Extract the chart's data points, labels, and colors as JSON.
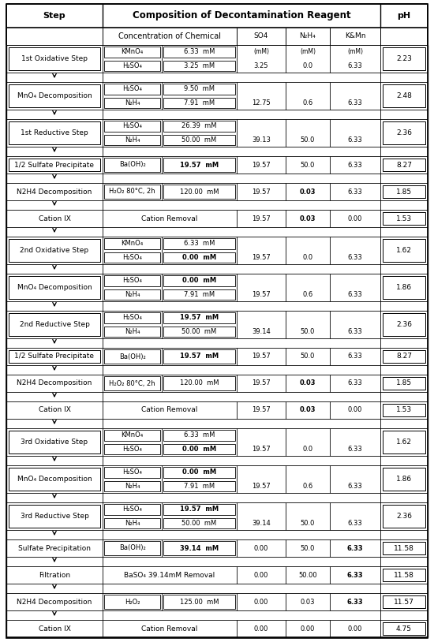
{
  "title_step": "Step",
  "title_composition": "Composition of Decontamination Reagent",
  "title_ph": "pH",
  "subheader_conc": "Concentration of Chemical",
  "subheader_so4": "SO4",
  "subheader_n2h4": "N₂H₄",
  "subheader_kmn": "K&Mn",
  "subheader_so4_unit": "(mM)",
  "subheader_n2h4_unit": "(mM)",
  "subheader_kmn_unit": "(mM)",
  "rows": [
    {
      "step": "1st Oxidative Step",
      "has_step_box": true,
      "has_arrow_below": true,
      "chemicals": [
        {
          "name": "KMnO₄",
          "conc": "6.33  mM",
          "bold": false
        },
        {
          "name": "H₂SO₄",
          "conc": "3.25  mM",
          "bold": false
        }
      ],
      "so4_top": "(mM)",
      "n2h4_top": "(mM)",
      "kmn_top": "(mM)",
      "so4": "3.25",
      "n2h4": "0.0",
      "kmn": "6.33",
      "bold_so4": false,
      "bold_n2h4": false,
      "bold_kmn": false,
      "ph": "2.23"
    },
    {
      "step": "MnO₄ Decomposition",
      "has_step_box": true,
      "has_arrow_below": true,
      "chemicals": [
        {
          "name": "H₂SO₄",
          "conc": "9.50  mM",
          "bold": false
        },
        {
          "name": "N₂H₄",
          "conc": "7.91  mM",
          "bold": false
        }
      ],
      "so4_top": null,
      "n2h4_top": null,
      "kmn_top": null,
      "so4": "12.75",
      "n2h4": "0.6",
      "kmn": "6.33",
      "bold_so4": false,
      "bold_n2h4": false,
      "bold_kmn": false,
      "ph": "2.48"
    },
    {
      "step": "1st Reductive Step",
      "has_step_box": true,
      "has_arrow_below": true,
      "chemicals": [
        {
          "name": "H₂SO₄",
          "conc": "26.39  mM",
          "bold": false
        },
        {
          "name": "N₂H₄",
          "conc": "50.00  mM",
          "bold": false
        }
      ],
      "so4_top": null,
      "n2h4_top": null,
      "kmn_top": null,
      "so4": "39.13",
      "n2h4": "50.0",
      "kmn": "6.33",
      "bold_so4": false,
      "bold_n2h4": false,
      "bold_kmn": false,
      "ph": "2.36"
    },
    {
      "step": "1/2 Sulfate Precipitate",
      "has_step_box": true,
      "has_arrow_below": true,
      "chemicals": [
        {
          "name": "Ba(OH)₂",
          "conc": "19.57  mM",
          "bold": true
        }
      ],
      "so4_top": null,
      "n2h4_top": null,
      "kmn_top": null,
      "so4": "19.57",
      "n2h4": "50.0",
      "kmn": "6.33",
      "bold_so4": false,
      "bold_n2h4": false,
      "bold_kmn": false,
      "ph": "8.27"
    },
    {
      "step": "N2H4 Decomposition",
      "has_step_box": false,
      "has_arrow_below": true,
      "chemicals": [
        {
          "name": "H₂O₂ 80°C, 2h",
          "conc": "120.00  mM",
          "bold": false
        }
      ],
      "so4_top": null,
      "n2h4_top": null,
      "kmn_top": null,
      "so4": "19.57",
      "n2h4": "0.03",
      "kmn": "6.33",
      "bold_so4": false,
      "bold_n2h4": true,
      "bold_kmn": false,
      "ph": "1.85"
    },
    {
      "step": "Cation IX",
      "has_step_box": false,
      "has_arrow_below": true,
      "chem_text": "Cation Removal",
      "chemicals": [],
      "so4_top": null,
      "n2h4_top": null,
      "kmn_top": null,
      "so4": "19.57",
      "n2h4": "0.03",
      "kmn": "0.00",
      "bold_so4": false,
      "bold_n2h4": true,
      "bold_kmn": false,
      "ph": "1.53"
    },
    {
      "step": "2nd Oxidative Step",
      "has_step_box": true,
      "has_arrow_below": true,
      "chemicals": [
        {
          "name": "KMnO₄",
          "conc": "6.33  mM",
          "bold": false
        },
        {
          "name": "H₂SO₄",
          "conc": "0.00  mM",
          "bold": true
        }
      ],
      "so4_top": null,
      "n2h4_top": null,
      "kmn_top": null,
      "so4": "19.57",
      "n2h4": "0.0",
      "kmn": "6.33",
      "bold_so4": false,
      "bold_n2h4": false,
      "bold_kmn": false,
      "ph": "1.62"
    },
    {
      "step": "MnO₄ Decomposition",
      "has_step_box": true,
      "has_arrow_below": true,
      "chemicals": [
        {
          "name": "H₂SO₄",
          "conc": "0.00  mM",
          "bold": true
        },
        {
          "name": "N₂H₄",
          "conc": "7.91  mM",
          "bold": false
        }
      ],
      "so4_top": null,
      "n2h4_top": null,
      "kmn_top": null,
      "so4": "19.57",
      "n2h4": "0.6",
      "kmn": "6.33",
      "bold_so4": false,
      "bold_n2h4": false,
      "bold_kmn": false,
      "ph": "1.86"
    },
    {
      "step": "2nd Reductive Step",
      "has_step_box": true,
      "has_arrow_below": true,
      "chemicals": [
        {
          "name": "H₂SO₄",
          "conc": "19.57  mM",
          "bold": true
        },
        {
          "name": "N₂H₄",
          "conc": "50.00  mM",
          "bold": false
        }
      ],
      "so4_top": null,
      "n2h4_top": null,
      "kmn_top": null,
      "so4": "39.14",
      "n2h4": "50.0",
      "kmn": "6.33",
      "bold_so4": false,
      "bold_n2h4": false,
      "bold_kmn": false,
      "ph": "2.36"
    },
    {
      "step": "1/2 Sulfate Precipitate",
      "has_step_box": true,
      "has_arrow_below": true,
      "chemicals": [
        {
          "name": "Ba(OH)₂",
          "conc": "19.57  mM",
          "bold": true
        }
      ],
      "so4_top": null,
      "n2h4_top": null,
      "kmn_top": null,
      "so4": "19.57",
      "n2h4": "50.0",
      "kmn": "6.33",
      "bold_so4": false,
      "bold_n2h4": false,
      "bold_kmn": false,
      "ph": "8.27"
    },
    {
      "step": "N2H4 Decomposition",
      "has_step_box": false,
      "has_arrow_below": true,
      "chemicals": [
        {
          "name": "H₂O₂ 80°C, 2h",
          "conc": "120.00  mM",
          "bold": false
        }
      ],
      "so4_top": null,
      "n2h4_top": null,
      "kmn_top": null,
      "so4": "19.57",
      "n2h4": "0.03",
      "kmn": "6.33",
      "bold_so4": false,
      "bold_n2h4": true,
      "bold_kmn": false,
      "ph": "1.85"
    },
    {
      "step": "Cation IX",
      "has_step_box": false,
      "has_arrow_below": true,
      "chem_text": "Cation Removal",
      "chemicals": [],
      "so4_top": null,
      "n2h4_top": null,
      "kmn_top": null,
      "so4": "19.57",
      "n2h4": "0.03",
      "kmn": "0.00",
      "bold_so4": false,
      "bold_n2h4": true,
      "bold_kmn": false,
      "ph": "1.53"
    },
    {
      "step": "3rd Oxidative Step",
      "has_step_box": true,
      "has_arrow_below": true,
      "chemicals": [
        {
          "name": "KMnO₄",
          "conc": "6.33  mM",
          "bold": false
        },
        {
          "name": "H₂SO₄",
          "conc": "0.00  mM",
          "bold": true
        }
      ],
      "so4_top": null,
      "n2h4_top": null,
      "kmn_top": null,
      "so4": "19.57",
      "n2h4": "0.0",
      "kmn": "6.33",
      "bold_so4": false,
      "bold_n2h4": false,
      "bold_kmn": false,
      "ph": "1.62"
    },
    {
      "step": "MnO₄ Decomposition",
      "has_step_box": true,
      "has_arrow_below": true,
      "chemicals": [
        {
          "name": "H₂SO₄",
          "conc": "0.00  mM",
          "bold": true
        },
        {
          "name": "N₂H₄",
          "conc": "7.91  mM",
          "bold": false
        }
      ],
      "so4_top": null,
      "n2h4_top": null,
      "kmn_top": null,
      "so4": "19.57",
      "n2h4": "0.6",
      "kmn": "6.33",
      "bold_so4": false,
      "bold_n2h4": false,
      "bold_kmn": false,
      "ph": "1.86"
    },
    {
      "step": "3rd Reductive Step",
      "has_step_box": true,
      "has_arrow_below": true,
      "chemicals": [
        {
          "name": "H₂SO₄",
          "conc": "19.57  mM",
          "bold": true
        },
        {
          "name": "N₂H₄",
          "conc": "50.00  mM",
          "bold": false
        }
      ],
      "so4_top": null,
      "n2h4_top": null,
      "kmn_top": null,
      "so4": "39.14",
      "n2h4": "50.0",
      "kmn": "6.33",
      "bold_so4": false,
      "bold_n2h4": false,
      "bold_kmn": false,
      "ph": "2.36"
    },
    {
      "step": "Sulfate Precipitation",
      "has_step_box": false,
      "has_arrow_below": true,
      "chemicals": [
        {
          "name": "Ba(OH)₂",
          "conc": "39.14  mM",
          "bold": true
        }
      ],
      "so4_top": null,
      "n2h4_top": null,
      "kmn_top": null,
      "so4": "0.00",
      "n2h4": "50.0",
      "kmn": "6.33",
      "bold_so4": false,
      "bold_n2h4": false,
      "bold_kmn": true,
      "ph": "11.58"
    },
    {
      "step": "Filtration",
      "has_step_box": false,
      "has_arrow_below": true,
      "chem_text": "BaSO₄ 39.14mM Removal",
      "chemicals": [],
      "so4_top": null,
      "n2h4_top": null,
      "kmn_top": null,
      "so4": "0.00",
      "n2h4": "50.00",
      "kmn": "6.33",
      "bold_so4": false,
      "bold_n2h4": false,
      "bold_kmn": true,
      "ph": "11.58"
    },
    {
      "step": "N2H4 Decomposition",
      "has_step_box": false,
      "has_arrow_below": true,
      "chemicals": [
        {
          "name": "H₂O₂",
          "conc": "125.00  mM",
          "bold": false
        }
      ],
      "so4_top": null,
      "n2h4_top": null,
      "kmn_top": null,
      "so4": "0.00",
      "n2h4": "0.03",
      "kmn": "6.33",
      "bold_so4": false,
      "bold_n2h4": false,
      "bold_kmn": true,
      "ph": "11.57"
    },
    {
      "step": "Cation IX",
      "has_step_box": false,
      "has_arrow_below": false,
      "chem_text": "Cation Removal",
      "chemicals": [],
      "so4_top": null,
      "n2h4_top": null,
      "kmn_top": null,
      "so4": "0.00",
      "n2h4": "0.00",
      "kmn": "0.00",
      "bold_so4": false,
      "bold_n2h4": false,
      "bold_kmn": false,
      "ph": "4.75"
    }
  ]
}
